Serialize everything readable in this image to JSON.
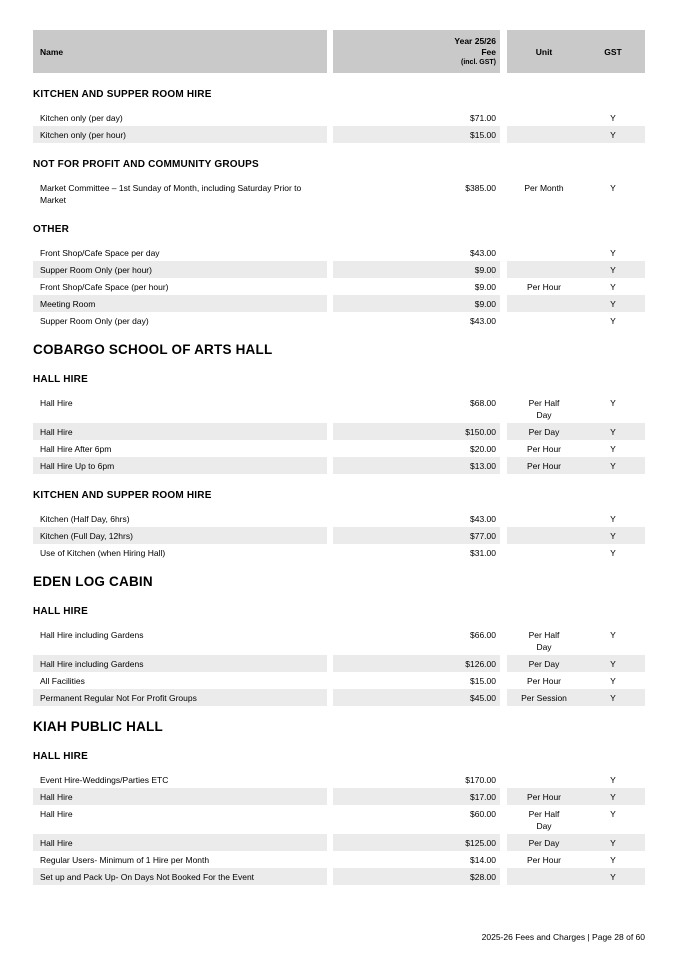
{
  "colors": {
    "header_bg": "#c9c9c9",
    "stripe_bg": "#ebebeb"
  },
  "table_header": {
    "name": "Name",
    "fee_line1": "Year 25/26",
    "fee_line2": "Fee",
    "fee_line3": "(incl. GST)",
    "unit": "Unit",
    "gst": "GST"
  },
  "sections": [
    {
      "type": "category",
      "title": "KITCHEN AND SUPPER ROOM HIRE",
      "rows": [
        {
          "name": "Kitchen only (per day)",
          "fee": "$71.00",
          "unit": "",
          "gst": "Y"
        },
        {
          "name": "Kitchen only (per hour)",
          "fee": "$15.00",
          "unit": "",
          "gst": "Y"
        }
      ]
    },
    {
      "type": "category",
      "title": "NOT FOR PROFIT AND COMMUNITY GROUPS",
      "rows": [
        {
          "name": "Market Committee – 1st Sunday of Month, including Saturday Prior to Market",
          "fee": "$385.00",
          "unit": "Per Month",
          "gst": "Y"
        }
      ]
    },
    {
      "type": "category",
      "title": "OTHER",
      "rows": [
        {
          "name": "Front Shop/Cafe Space per day",
          "fee": "$43.00",
          "unit": "",
          "gst": "Y"
        },
        {
          "name": "Supper Room Only (per hour)",
          "fee": "$9.00",
          "unit": "",
          "gst": "Y"
        },
        {
          "name": "Front Shop/Cafe Space (per hour)",
          "fee": "$9.00",
          "unit": "Per Hour",
          "gst": "Y"
        },
        {
          "name": "Meeting Room",
          "fee": "$9.00",
          "unit": "",
          "gst": "Y"
        },
        {
          "name": "Supper Room Only (per day)",
          "fee": "$43.00",
          "unit": "",
          "gst": "Y"
        }
      ]
    },
    {
      "type": "venue",
      "title": "COBARGO SCHOOL OF ARTS HALL"
    },
    {
      "type": "category",
      "title": "HALL HIRE",
      "rows": [
        {
          "name": "Hall Hire",
          "fee": "$68.00",
          "unit": "Per Half\nDay",
          "gst": "Y"
        },
        {
          "name": "Hall Hire",
          "fee": "$150.00",
          "unit": "Per Day",
          "gst": "Y"
        },
        {
          "name": "Hall Hire After 6pm",
          "fee": "$20.00",
          "unit": "Per Hour",
          "gst": "Y"
        },
        {
          "name": "Hall Hire Up to 6pm",
          "fee": "$13.00",
          "unit": "Per Hour",
          "gst": "Y"
        }
      ]
    },
    {
      "type": "category",
      "title": "KITCHEN AND SUPPER ROOM HIRE",
      "rows": [
        {
          "name": "Kitchen (Half Day, 6hrs)",
          "fee": "$43.00",
          "unit": "",
          "gst": "Y"
        },
        {
          "name": "Kitchen (Full Day, 12hrs)",
          "fee": "$77.00",
          "unit": "",
          "gst": "Y"
        },
        {
          "name": "Use of Kitchen (when Hiring Hall)",
          "fee": "$31.00",
          "unit": "",
          "gst": "Y"
        }
      ]
    },
    {
      "type": "venue",
      "title": "EDEN LOG CABIN"
    },
    {
      "type": "category",
      "title": "HALL HIRE",
      "rows": [
        {
          "name": "Hall Hire including Gardens",
          "fee": "$66.00",
          "unit": "Per Half\nDay",
          "gst": "Y"
        },
        {
          "name": "Hall Hire including Gardens",
          "fee": "$126.00",
          "unit": "Per Day",
          "gst": "Y"
        },
        {
          "name": "All Facilities",
          "fee": "$15.00",
          "unit": "Per Hour",
          "gst": "Y"
        },
        {
          "name": "Permanent Regular Not For Profit Groups",
          "fee": "$45.00",
          "unit": "Per Session",
          "gst": "Y"
        }
      ]
    },
    {
      "type": "venue",
      "title": "KIAH PUBLIC HALL"
    },
    {
      "type": "category",
      "title": "HALL HIRE",
      "rows": [
        {
          "name": "Event Hire-Weddings/Parties ETC",
          "fee": "$170.00",
          "unit": "",
          "gst": "Y"
        },
        {
          "name": "Hall Hire",
          "fee": "$17.00",
          "unit": "Per Hour",
          "gst": "Y"
        },
        {
          "name": "Hall Hire",
          "fee": "$60.00",
          "unit": "Per Half\nDay",
          "gst": "Y"
        },
        {
          "name": "Hall Hire",
          "fee": "$125.00",
          "unit": "Per Day",
          "gst": "Y"
        },
        {
          "name": "Regular Users- Minimum of 1 Hire per Month",
          "fee": "$14.00",
          "unit": "Per Hour",
          "gst": "Y"
        },
        {
          "name": "Set up and Pack Up- On Days Not Booked For the Event",
          "fee": "$28.00",
          "unit": "",
          "gst": "Y"
        }
      ]
    }
  ],
  "footer": {
    "text": "2025-26 Fees and Charges | Page 28 of 60"
  }
}
